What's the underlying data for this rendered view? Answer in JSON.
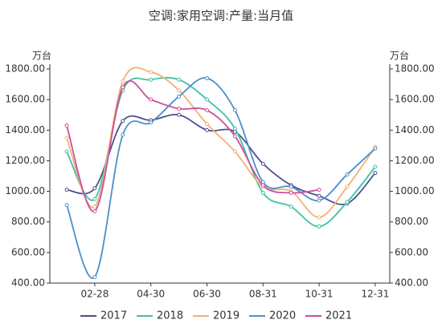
{
  "chart_data": {
    "type": "line",
    "title": "空调:家用空调:产量:当月值",
    "y_unit": "万台",
    "y2_unit": "万台",
    "categories": [
      null,
      "02-28",
      null,
      "04-30",
      null,
      "06-30",
      null,
      "08-31",
      null,
      "10-31",
      null,
      "12-31"
    ],
    "series": [
      {
        "name": "2017",
        "color": "#4b4f8c",
        "values": [
          1010,
          1020,
          1460,
          1465,
          1500,
          1400,
          1390,
          1180,
          1040,
          970,
          920,
          1120
        ]
      },
      {
        "name": "2018",
        "color": "#3fc1aa",
        "values": [
          1260,
          950,
          1660,
          1730,
          1730,
          1600,
          1410,
          990,
          900,
          770,
          930,
          1160
        ]
      },
      {
        "name": "2019",
        "color": "#f2b173",
        "values": [
          1350,
          900,
          1720,
          1780,
          1660,
          1440,
          1260,
          1030,
          1000,
          830,
          1030,
          1290
        ]
      },
      {
        "name": "2020",
        "color": "#4a8fc9",
        "values": [
          910,
          440,
          1370,
          1450,
          1620,
          1740,
          1530,
          1060,
          1030,
          940,
          1110,
          1280
        ]
      },
      {
        "name": "2021",
        "color": "#cc4e9e",
        "values": [
          1430,
          870,
          1680,
          1600,
          1540,
          1530,
          1360,
          1040,
          990,
          1010,
          null,
          null
        ]
      }
    ],
    "ylim": [
      400,
      1800
    ],
    "yticks": [
      {
        "value": 400,
        "label": "400.00"
      },
      {
        "value": 600,
        "label": "600.00"
      },
      {
        "value": 800,
        "label": "800.00"
      },
      {
        "value": 1000,
        "label": "1000.00"
      },
      {
        "value": 1200,
        "label": "1200.00"
      },
      {
        "value": 1400,
        "label": "1400.00"
      },
      {
        "value": 1600,
        "label": "1600.00"
      },
      {
        "value": 1800,
        "label": "1800.00"
      }
    ],
    "y2lim": [
      400,
      1800
    ],
    "y2ticks": [
      {
        "value": 400,
        "label": "400.00"
      },
      {
        "value": 600,
        "label": "600.00"
      },
      {
        "value": 800,
        "label": "800.00"
      },
      {
        "value": 1000,
        "label": "1000.00"
      },
      {
        "value": 1200,
        "label": "1200.00"
      },
      {
        "value": 1400,
        "label": "1400.00"
      },
      {
        "value": 1600,
        "label": "1600.00"
      },
      {
        "value": 1800,
        "label": "1800.00"
      }
    ],
    "smooth": true,
    "legend": "bottom"
  }
}
